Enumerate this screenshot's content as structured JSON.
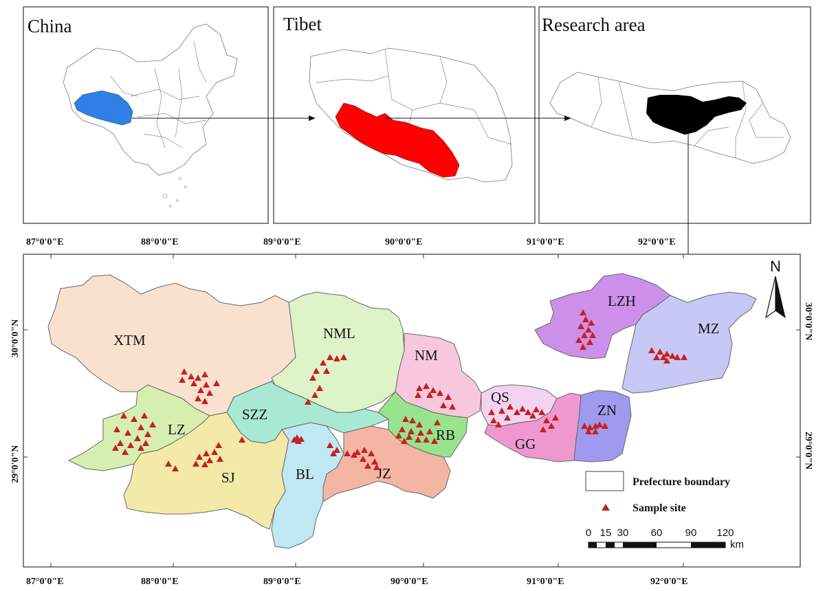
{
  "insets": {
    "china": {
      "title": "China"
    },
    "tibet": {
      "title": "Tibet"
    },
    "research": {
      "title": "Research area"
    }
  },
  "colors": {
    "china_highlight": "#2f7fe6",
    "tibet_highlight": "#ff0000",
    "research_highlight": "#000000",
    "sample_marker": "#c62020"
  },
  "coordinates": {
    "top_axis": [
      "87°0'0\"E",
      "88°0'0\"E",
      "89°0'0\"E",
      "90°0'0\"E",
      "91°0'0\"E",
      "92°0'0\"E"
    ],
    "bottom_axis": [
      "87°0'0\"E",
      "88°0'0\"E",
      "89°0'0\"E",
      "90°0'0\"E",
      "91°0'0\"E",
      "92°0'0\"E"
    ],
    "left_axis": [
      "30°0'0\"N",
      "29°0'0\"N"
    ],
    "right_axis": [
      "30°0'0\"N",
      "29°0'0\"N"
    ]
  },
  "regions": [
    {
      "code": "XTM",
      "color": "#f9e1d0"
    },
    {
      "code": "NML",
      "color": "#def3c8"
    },
    {
      "code": "NM",
      "color": "#f7c8dd"
    },
    {
      "code": "LZ",
      "color": "#d6efb0"
    },
    {
      "code": "SZZ",
      "color": "#a9e8d2"
    },
    {
      "code": "SJ",
      "color": "#f3eaa8"
    },
    {
      "code": "BL",
      "color": "#bfe8f2"
    },
    {
      "code": "JZ",
      "color": "#f4b6a2"
    },
    {
      "code": "RB",
      "color": "#98e38e"
    },
    {
      "code": "QS",
      "color": "#f3d3f2"
    },
    {
      "code": "GG",
      "color": "#ef98cf"
    },
    {
      "code": "ZN",
      "color": "#9f99ef"
    },
    {
      "code": "LZH",
      "color": "#cc90ea"
    },
    {
      "code": "MZ",
      "color": "#c7c8f5"
    }
  ],
  "legend": {
    "boundary_label": "Prefecture boundary",
    "sample_label": "Sample site"
  },
  "scale": {
    "ticks": [
      "0",
      "15",
      "30",
      "60",
      "90",
      "120"
    ],
    "unit": "km"
  },
  "north": {
    "label": "N"
  }
}
